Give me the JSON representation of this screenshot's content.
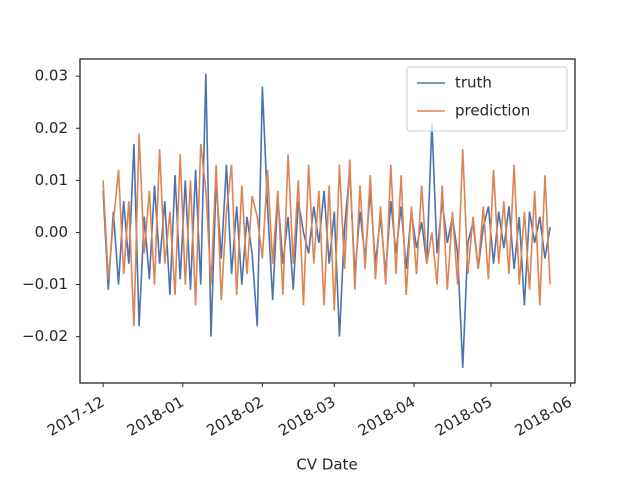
{
  "chart_data": {
    "type": "line",
    "xlabel": "CV Date",
    "x": [
      0,
      2,
      4,
      6,
      8,
      10,
      12,
      14,
      16,
      18,
      20,
      22,
      24,
      26,
      28,
      30,
      32,
      34,
      36,
      38,
      40,
      42,
      44,
      46,
      48,
      50,
      52,
      54,
      56,
      58,
      60,
      62,
      64,
      66,
      68,
      70,
      72,
      74,
      76,
      78,
      80,
      82,
      84,
      86,
      88,
      90,
      92,
      94,
      96,
      98,
      100,
      102,
      104,
      106,
      108,
      110,
      112,
      114,
      116,
      118,
      120,
      122,
      124,
      126,
      128,
      130,
      132,
      134,
      136,
      138,
      140,
      142,
      144,
      146,
      148,
      150,
      152,
      154,
      156,
      158,
      160,
      162,
      164,
      166,
      168,
      170,
      172,
      174
    ],
    "series": [
      {
        "name": "truth",
        "color": "#4c72b0",
        "values": [
          0.008,
          -0.011,
          0.004,
          -0.01,
          0.006,
          -0.006,
          0.017,
          -0.018,
          0.003,
          -0.009,
          0.009,
          -0.006,
          0.006,
          -0.012,
          0.011,
          -0.009,
          0.01,
          -0.011,
          0.012,
          -0.01,
          0.0305,
          -0.02,
          0.01,
          -0.005,
          0.013,
          -0.008,
          0.005,
          -0.01,
          0.003,
          -0.004,
          -0.018,
          0.028,
          0.005,
          -0.013,
          0.007,
          -0.006,
          0.003,
          -0.011,
          0.006,
          0.0,
          -0.004,
          0.005,
          -0.002,
          0.008,
          -0.006,
          0.004,
          -0.02,
          0.001,
          0.012,
          -0.008,
          0.004,
          -0.005,
          0.008,
          -0.006,
          0.003,
          -0.008,
          0.006,
          -0.004,
          0.005,
          -0.007,
          0.004,
          -0.003,
          0.002,
          -0.006,
          0.021,
          -0.004,
          0.006,
          -0.002,
          0.003,
          -0.004,
          -0.026,
          -0.002,
          0.002,
          -0.007,
          0.001,
          0.005,
          -0.006,
          0.004,
          -0.003,
          0.005,
          -0.007,
          0.003,
          -0.014,
          0.004,
          -0.002,
          0.003,
          -0.005,
          0.001
        ]
      },
      {
        "name": "prediction",
        "color": "#dd8452",
        "values": [
          0.01,
          -0.009,
          0.002,
          0.012,
          -0.008,
          0.006,
          -0.018,
          0.019,
          -0.004,
          0.008,
          -0.01,
          0.016,
          -0.006,
          0.004,
          -0.012,
          0.015,
          -0.01,
          0.01,
          -0.014,
          0.017,
          0.008,
          -0.01,
          0.013,
          -0.013,
          0.004,
          0.013,
          -0.012,
          0.009,
          -0.008,
          0.007,
          0.003,
          -0.005,
          0.012,
          -0.006,
          0.008,
          -0.012,
          0.015,
          -0.006,
          0.01,
          -0.014,
          0.013,
          -0.006,
          0.008,
          -0.014,
          0.009,
          -0.015,
          0.013,
          -0.007,
          0.014,
          -0.011,
          0.009,
          -0.007,
          0.011,
          -0.009,
          0.005,
          -0.01,
          0.013,
          -0.008,
          0.011,
          -0.012,
          0.005,
          -0.008,
          0.009,
          -0.006,
          0.0,
          -0.01,
          0.009,
          -0.011,
          0.004,
          -0.01,
          0.016,
          -0.008,
          0.003,
          -0.007,
          0.005,
          -0.009,
          0.012,
          -0.006,
          0.006,
          -0.008,
          0.013,
          -0.01,
          0.004,
          -0.011,
          0.008,
          -0.014,
          0.011,
          -0.01
        ]
      }
    ],
    "xlim": [
      -9,
      183.7
    ],
    "xticks": [
      {
        "value": 0,
        "label": "2017-12"
      },
      {
        "value": 31,
        "label": "2018-01"
      },
      {
        "value": 62,
        "label": "2018-02"
      },
      {
        "value": 90,
        "label": "2018-03"
      },
      {
        "value": 121,
        "label": "2018-04"
      },
      {
        "value": 151,
        "label": "2018-05"
      },
      {
        "value": 182,
        "label": "2018-06"
      }
    ],
    "ylim": [
      -0.0289,
      0.0333
    ],
    "yticks": [
      {
        "value": -0.02,
        "label": "−0.02"
      },
      {
        "value": -0.01,
        "label": "−0.01"
      },
      {
        "value": 0,
        "label": "0.00"
      },
      0.01,
      0.02,
      0.03
    ],
    "legend": "upper right",
    "grid": false
  }
}
